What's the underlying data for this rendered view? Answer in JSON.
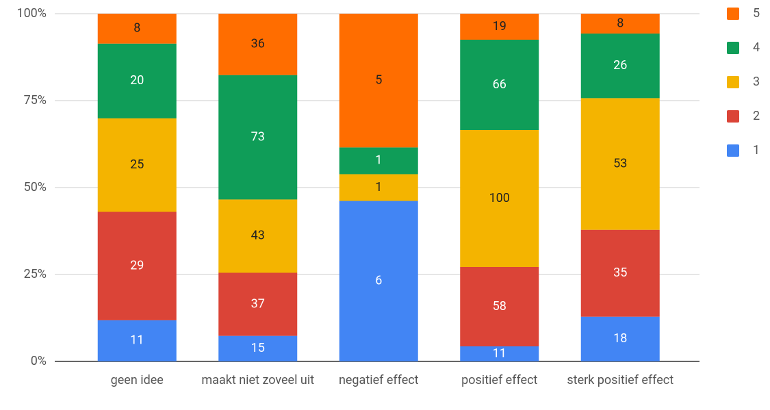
{
  "chart_data": {
    "type": "bar",
    "stacking": "percent",
    "categories": [
      "geen idee",
      "maakt niet zoveel uit",
      "negatief effect",
      "positief effect",
      "sterk positief effect"
    ],
    "series": [
      {
        "name": "1",
        "color": "#4285f4",
        "label_color": "#ffffff",
        "values": [
          11,
          15,
          6,
          11,
          18
        ]
      },
      {
        "name": "2",
        "color": "#db4437",
        "label_color": "#ffffff",
        "values": [
          29,
          37,
          0,
          58,
          35
        ]
      },
      {
        "name": "3",
        "color": "#f4b400",
        "label_color": "#222222",
        "values": [
          25,
          43,
          1,
          100,
          53
        ]
      },
      {
        "name": "4",
        "color": "#0f9d58",
        "label_color": "#ffffff",
        "values": [
          20,
          73,
          1,
          66,
          26
        ]
      },
      {
        "name": "5",
        "color": "#ff6d00",
        "label_color": "#222222",
        "values": [
          8,
          36,
          5,
          19,
          8
        ]
      }
    ],
    "ylim": [
      0,
      100
    ],
    "yticks": [
      {
        "value": 0,
        "label": "0%"
      },
      {
        "value": 25,
        "label": "25%"
      },
      {
        "value": 50,
        "label": "50%"
      },
      {
        "value": 75,
        "label": "75%"
      },
      {
        "value": 100,
        "label": "100%"
      }
    ],
    "grid": true,
    "legend": "right"
  }
}
